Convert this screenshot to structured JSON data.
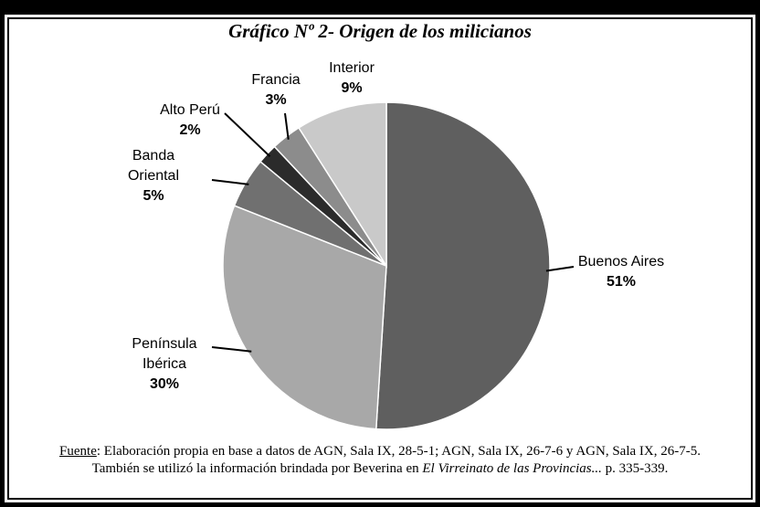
{
  "chart_data": {
    "type": "pie",
    "title": "Gráfico Nº 2- Origen de los milicianos",
    "categories": [
      "Buenos Aires",
      "Península Ibérica",
      "Banda Oriental",
      "Alto Perú",
      "Francia",
      "Interior"
    ],
    "values": [
      51,
      30,
      5,
      2,
      3,
      9
    ],
    "value_labels": [
      "51%",
      "30%",
      "5%",
      "2%",
      "3%",
      "9%"
    ],
    "colors": [
      "#5f5f5f",
      "#a8a8a8",
      "#707070",
      "#2b2b2b",
      "#8c8c8c",
      "#c9c9c9"
    ]
  },
  "footnote": {
    "label": "Fuente",
    "text": ": Elaboración propia en base a datos de AGN, Sala IX, 28-5-1; AGN, Sala IX, 26-7-6 y AGN, Sala IX, 26-7-5. También se utilizó la información brindada por Beverina en ",
    "italic": "El Virreinato de las Provincias...",
    "end": " p. 335-339."
  }
}
